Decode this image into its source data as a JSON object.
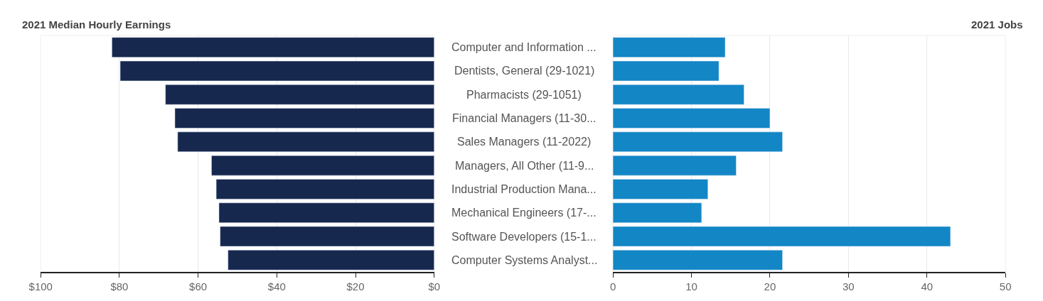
{
  "chart_data": [
    {
      "type": "bar",
      "orientation": "horizontal",
      "title": "2021 Median Hourly Earnings",
      "categories": [
        "Computer and Information ...",
        "Dentists, General (29-1021)",
        "Pharmacists (29-1051)",
        "Financial Managers (11-30...",
        "Sales Managers (11-2022)",
        "Managers, All Other (11-9...",
        "Industrial Production Mana...",
        "Mechanical Engineers (17-...",
        "Software Developers (15-1...",
        "Computer Systems Analyst..."
      ],
      "values": [
        81.9,
        79.8,
        68.3,
        65.9,
        65.2,
        56.6,
        55.4,
        54.7,
        54.4,
        52.4
      ],
      "color": "#17284f",
      "xlim": [
        100,
        0
      ],
      "xticks": [
        {
          "value": 100,
          "label": "$100"
        },
        {
          "value": 80,
          "label": "$80"
        },
        {
          "value": 60,
          "label": "$60"
        },
        {
          "value": 40,
          "label": "$40"
        },
        {
          "value": 20,
          "label": "$20"
        },
        {
          "value": 0,
          "label": "$0"
        }
      ],
      "grid": "x"
    },
    {
      "type": "bar",
      "orientation": "horizontal",
      "title": "2021 Jobs",
      "categories": [
        null,
        null,
        null,
        null,
        null,
        null,
        null,
        null,
        null,
        null
      ],
      "values": [
        14.3,
        13.5,
        16.7,
        20.0,
        21.6,
        15.7,
        12.1,
        11.3,
        43.0,
        21.6
      ],
      "color": "#1386c6",
      "xlim": [
        0,
        50
      ],
      "xticks": [
        0,
        10,
        20,
        30,
        40,
        50
      ],
      "grid": "x",
      "tick_labels": "x"
    }
  ]
}
